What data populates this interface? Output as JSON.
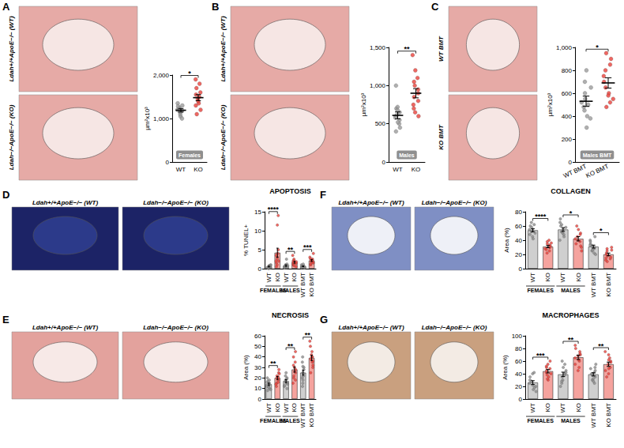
{
  "chart_data": [
    {
      "panel": "A",
      "type": "dot",
      "ylabel": "µm²x10³",
      "badge": "Females",
      "image_labels": [
        "Ldah+/+ApoE−/− (WT)",
        "Ldah−/−ApoE−/− (KO)"
      ],
      "categories": [
        "WT",
        "KO"
      ],
      "values": [
        1190,
        1480
      ],
      "errors": [
        40,
        70
      ],
      "points": [
        [
          1150,
          1200,
          1050,
          1300,
          1250,
          1100,
          1180,
          1350,
          1220,
          1000,
          1280,
          1150
        ],
        [
          1300,
          1500,
          1600,
          1900,
          1450,
          1200,
          1350,
          1700,
          1550,
          1400,
          1100,
          1800
        ]
      ],
      "point_colors": [
        "#9b9b9b",
        "#e8413b"
      ],
      "ylim": [
        0,
        2000
      ],
      "yticks": [
        0,
        1000,
        2000
      ],
      "grid": false,
      "significance": [
        {
          "from": 0,
          "to": 1,
          "label": "*"
        }
      ]
    },
    {
      "panel": "B",
      "type": "dot",
      "ylabel": "µm²x10³",
      "badge": "Males",
      "image_labels": [
        "Ldah+/+ApoE−/− (WT)",
        "Ldah−/−ApoE−/− (KO)"
      ],
      "categories": [
        "WT",
        "KO"
      ],
      "values": [
        610,
        900
      ],
      "errors": [
        45,
        60
      ],
      "points": [
        [
          450,
          500,
          550,
          600,
          650,
          700,
          580,
          620,
          400,
          720,
          520,
          1000,
          680
        ],
        [
          600,
          700,
          800,
          900,
          950,
          1000,
          1100,
          1200,
          850,
          750,
          1400,
          650,
          1050
        ]
      ],
      "point_colors": [
        "#9b9b9b",
        "#e8413b"
      ],
      "ylim": [
        0,
        1500
      ],
      "yticks": [
        0,
        500,
        1000,
        1500
      ],
      "grid": false,
      "significance": [
        {
          "from": 0,
          "to": 1,
          "label": "**"
        }
      ]
    },
    {
      "panel": "C",
      "type": "dot",
      "ylabel": "µm²x10³",
      "badge": "Males BMT",
      "image_labels": [
        "WT BMT",
        "KO BMT"
      ],
      "categories": [
        "WT BMT",
        "KO BMT"
      ],
      "values": [
        530,
        690
      ],
      "errors": [
        45,
        45
      ],
      "points": [
        [
          300,
          400,
          450,
          500,
          520,
          550,
          600,
          650,
          700,
          800,
          380,
          480
        ],
        [
          480,
          550,
          600,
          650,
          700,
          750,
          800,
          850,
          900,
          950,
          580,
          520
        ]
      ],
      "point_colors": [
        "#9b9b9b",
        "#e8413b"
      ],
      "ylim": [
        0,
        1000
      ],
      "yticks": [
        0,
        200,
        400,
        600,
        800,
        1000
      ],
      "grid": false,
      "significance": [
        {
          "from": 0,
          "to": 1,
          "label": "*"
        }
      ]
    },
    {
      "panel": "D",
      "type": "bar",
      "title": "APOPTOSIS",
      "ylabel": "% TUNEL+",
      "image_labels": [
        "Ldah+/+ApoE−/− (WT)",
        "Ldah−/−ApoE−/− (KO)"
      ],
      "categories": [
        "WT",
        "KO",
        "WT",
        "KO",
        "WT BMT",
        "KO BMT"
      ],
      "groups": [
        {
          "label": "FEMALES",
          "start": 0,
          "end": 1
        },
        {
          "label": "MALES",
          "start": 2,
          "end": 3
        }
      ],
      "values": [
        0.55,
        4.2,
        0.8,
        1.7,
        0.6,
        2.15
      ],
      "errors": [
        0.1,
        1.2,
        0.2,
        0.25,
        0.08,
        0.25
      ],
      "points": [
        [
          0,
          0.3,
          0.5,
          0.8,
          1.0,
          0.4,
          0.6,
          0.2,
          0.9,
          0.7,
          0.5
        ],
        [
          0.5,
          1.5,
          2.0,
          3.0,
          4.0,
          14.0,
          11.5,
          2.5,
          3.5,
          1.0,
          5.0,
          2.0
        ],
        [
          0.2,
          0.5,
          1.0,
          0.3,
          0.8,
          1.2,
          0.4,
          0.6,
          2.5,
          0.9,
          0.3
        ],
        [
          0.5,
          1.0,
          1.5,
          2.0,
          2.5,
          3.5,
          1.2,
          0.8,
          1.8,
          2.2,
          1.6,
          1.4
        ],
        [
          0.2,
          0.4,
          0.6,
          0.8,
          1.0,
          0.5,
          0.3,
          0.7,
          1.2,
          0.6,
          0.4,
          0.5
        ],
        [
          1.0,
          1.5,
          2.0,
          2.5,
          3.0,
          1.8,
          2.2,
          4.0,
          1.2,
          2.6,
          2.4,
          1.6
        ]
      ],
      "colors": [
        "#cfcfcf",
        "#f5a39e",
        "#cfcfcf",
        "#f5a39e",
        "#cfcfcf",
        "#f5a39e"
      ],
      "point_colors": [
        "#8c8c8c",
        "#e8413b",
        "#8c8c8c",
        "#e8413b",
        "#8c8c8c",
        "#e8413b"
      ],
      "ylim": [
        0,
        15
      ],
      "yticks": [
        0,
        5,
        10,
        15
      ],
      "grid": false,
      "significance": [
        {
          "from": 0,
          "to": 1,
          "label": "****"
        },
        {
          "from": 2,
          "to": 3,
          "label": "**"
        },
        {
          "from": 4,
          "to": 5,
          "label": "***"
        }
      ]
    },
    {
      "panel": "E",
      "type": "bar",
      "title": "NECROSIS",
      "ylabel": "Area (%)",
      "image_labels": [
        "Ldah+/+ApoE−/− (WT)",
        "Ldah−/−ApoE−/− (KO)"
      ],
      "categories": [
        "WT",
        "KO",
        "WT",
        "KO",
        "WT BMT",
        "KO BMT"
      ],
      "groups": [
        {
          "label": "FEMALES",
          "start": 0,
          "end": 1
        },
        {
          "label": "MALES",
          "start": 2,
          "end": 3
        }
      ],
      "values": [
        14,
        20,
        17,
        28,
        25,
        39
      ],
      "errors": [
        1.1,
        1.4,
        1.4,
        2.5,
        2.4,
        2.5
      ],
      "points": [
        [
          8,
          10,
          12,
          14,
          16,
          18,
          13,
          11,
          20,
          15,
          9,
          17
        ],
        [
          12,
          15,
          18,
          20,
          22,
          25,
          28,
          16,
          19,
          21,
          24,
          14
        ],
        [
          10,
          12,
          15,
          18,
          20,
          22,
          14,
          16,
          25,
          13,
          19
        ],
        [
          15,
          20,
          25,
          30,
          35,
          40,
          28,
          22,
          32,
          26,
          18,
          45
        ],
        [
          12,
          15,
          20,
          25,
          30,
          35,
          40,
          22,
          18,
          28,
          24,
          31
        ],
        [
          25,
          30,
          35,
          40,
          45,
          50,
          55,
          38,
          42,
          32,
          36,
          40
        ]
      ],
      "colors": [
        "#cfcfcf",
        "#f5a39e",
        "#cfcfcf",
        "#f5a39e",
        "#cfcfcf",
        "#f5a39e"
      ],
      "point_colors": [
        "#8c8c8c",
        "#e8413b",
        "#8c8c8c",
        "#e8413b",
        "#8c8c8c",
        "#e8413b"
      ],
      "ylim": [
        0,
        60
      ],
      "yticks": [
        0,
        10,
        20,
        30,
        40,
        50,
        60
      ],
      "grid": false,
      "significance": [
        {
          "from": 0,
          "to": 1,
          "label": "**"
        },
        {
          "from": 2,
          "to": 3,
          "label": "**"
        },
        {
          "from": 4,
          "to": 5,
          "label": "**"
        }
      ]
    },
    {
      "panel": "F",
      "type": "bar",
      "title": "COLLAGEN",
      "ylabel": "Area (%)",
      "image_labels": [
        "Ldah+/+ApoE−/− (WT)",
        "Ldah−/−ApoE−/− (KO)"
      ],
      "categories": [
        "WT",
        "KO",
        "WT",
        "KO",
        "WT BMT",
        "KO BMT"
      ],
      "groups": [
        {
          "label": "FEMALES",
          "start": 0,
          "end": 1
        },
        {
          "label": "MALES",
          "start": 2,
          "end": 3
        }
      ],
      "values": [
        54,
        31,
        55,
        42,
        31,
        20
      ],
      "errors": [
        2.2,
        1.6,
        2.7,
        3,
        2.1,
        1.9
      ],
      "points": [
        [
          42,
          48,
          52,
          55,
          60,
          65,
          50,
          45,
          58,
          62,
          54
        ],
        [
          22,
          25,
          28,
          30,
          32,
          35,
          38,
          40,
          30,
          27,
          33,
          36
        ],
        [
          40,
          45,
          50,
          55,
          60,
          65,
          70,
          52,
          48,
          58,
          62
        ],
        [
          25,
          30,
          35,
          40,
          45,
          50,
          55,
          42,
          38,
          48,
          60,
          32
        ],
        [
          20,
          25,
          28,
          30,
          32,
          35,
          40,
          45,
          26,
          33,
          38,
          22
        ],
        [
          10,
          12,
          15,
          18,
          20,
          22,
          25,
          28,
          14,
          30,
          16,
          26
        ]
      ],
      "colors": [
        "#cfcfcf",
        "#f5a39e",
        "#cfcfcf",
        "#f5a39e",
        "#cfcfcf",
        "#f5a39e"
      ],
      "point_colors": [
        "#8c8c8c",
        "#e8413b",
        "#8c8c8c",
        "#e8413b",
        "#8c8c8c",
        "#e8413b"
      ],
      "ylim": [
        0,
        80
      ],
      "yticks": [
        0,
        20,
        40,
        60,
        80
      ],
      "grid": false,
      "significance": [
        {
          "from": 0,
          "to": 1,
          "label": "****"
        },
        {
          "from": 2,
          "to": 3,
          "label": "*"
        },
        {
          "from": 4,
          "to": 5,
          "label": "*"
        }
      ]
    },
    {
      "panel": "G",
      "type": "bar",
      "title": "MACROPHAGES",
      "ylabel": "Area (%)",
      "image_labels": [
        "Ldah+/+ApoE−/− (WT)",
        "Ldah−/−ApoE−/− (KO)"
      ],
      "categories": [
        "WT",
        "KO",
        "WT",
        "KO",
        "WT BMT",
        "KO BMT"
      ],
      "groups": [
        {
          "label": "FEMALES",
          "start": 0,
          "end": 1
        },
        {
          "label": "MALES",
          "start": 2,
          "end": 3
        }
      ],
      "values": [
        26,
        44,
        39,
        66,
        39,
        55
      ],
      "errors": [
        3,
        2.7,
        3.5,
        3.4,
        2.6,
        3.4
      ],
      "points": [
        [
          12,
          15,
          20,
          25,
          30,
          35,
          40,
          22,
          18,
          28,
          42
        ],
        [
          30,
          35,
          40,
          45,
          50,
          55,
          38,
          42,
          48,
          60,
          32,
          52
        ],
        [
          20,
          25,
          30,
          35,
          40,
          45,
          50,
          55,
          60,
          28,
          38,
          42
        ],
        [
          45,
          50,
          55,
          60,
          65,
          70,
          75,
          80,
          85,
          62,
          68,
          72
        ],
        [
          25,
          30,
          35,
          40,
          45,
          50,
          32,
          38,
          42,
          48,
          55,
          28
        ],
        [
          35,
          40,
          45,
          50,
          55,
          60,
          65,
          70,
          75,
          48,
          58,
          62
        ]
      ],
      "colors": [
        "#cfcfcf",
        "#f5a39e",
        "#cfcfcf",
        "#f5a39e",
        "#cfcfcf",
        "#f5a39e"
      ],
      "point_colors": [
        "#8c8c8c",
        "#e8413b",
        "#8c8c8c",
        "#e8413b",
        "#8c8c8c",
        "#e8413b"
      ],
      "ylim": [
        0,
        100
      ],
      "yticks": [
        0,
        20,
        40,
        60,
        80,
        100
      ],
      "grid": false,
      "significance": [
        {
          "from": 0,
          "to": 1,
          "label": "***"
        },
        {
          "from": 2,
          "to": 3,
          "label": "**"
        },
        {
          "from": 4,
          "to": 5,
          "label": "**"
        }
      ]
    }
  ]
}
